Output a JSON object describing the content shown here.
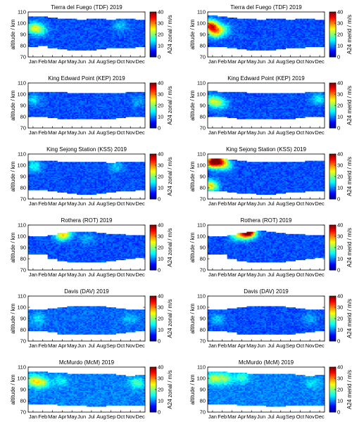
{
  "chart_data": {
    "type": "heatmap",
    "months": [
      "Jan",
      "Feb",
      "Mar",
      "Apr",
      "May",
      "Jun",
      "Jul",
      "Aug",
      "Sep",
      "Oct",
      "Nov",
      "Dec"
    ],
    "ylim": [
      70,
      110
    ],
    "yticks": [
      70,
      80,
      90,
      100,
      110
    ],
    "ylabel": "altitude / km",
    "colorbar_ticks": [
      0,
      10,
      20,
      30,
      40
    ],
    "colorbar_range": [
      0,
      40
    ],
    "colormap": [
      "#00008f",
      "#0000ff",
      "#0080ff",
      "#00ffff",
      "#80ff80",
      "#ffff00",
      "#ff8000",
      "#ff0000",
      "#800000"
    ],
    "panels": [
      {
        "title": "Tierra del Fuego (TDF) 2019",
        "component": "zonal",
        "cbar_label": "A24 zonal / m/s",
        "coverage": [
          [
            79,
            106
          ],
          [
            80,
            106
          ],
          [
            78,
            105
          ],
          [
            77,
            104
          ],
          [
            76,
            104
          ],
          [
            76,
            103
          ],
          [
            76,
            104
          ],
          [
            77,
            104
          ],
          [
            78,
            103
          ],
          [
            78,
            104
          ],
          [
            78,
            104
          ],
          [
            79,
            103
          ]
        ],
        "cores": [
          {
            "month": 0.6,
            "alt": 96,
            "value": 22
          },
          {
            "month": 1.3,
            "alt": 94,
            "value": 16
          },
          {
            "month": 9.5,
            "alt": 98,
            "value": 13
          }
        ],
        "base": 8
      },
      {
        "title": "Tierra del Fuego (TDF) 2019",
        "component": "merid",
        "cbar_label": "A24 merid / m/s",
        "coverage": [
          [
            79,
            107
          ],
          [
            79,
            106
          ],
          [
            78,
            105
          ],
          [
            77,
            104
          ],
          [
            76,
            104
          ],
          [
            76,
            103
          ],
          [
            76,
            104
          ],
          [
            77,
            104
          ],
          [
            78,
            103
          ],
          [
            78,
            104
          ],
          [
            79,
            104
          ],
          [
            79,
            103
          ]
        ],
        "cores": [
          {
            "month": 0.3,
            "alt": 98,
            "value": 34
          },
          {
            "month": 0.8,
            "alt": 92,
            "value": 24
          },
          {
            "month": 1.6,
            "alt": 95,
            "value": 17
          }
        ],
        "base": 8
      },
      {
        "title": "King Edward Point (KEP) 2019",
        "component": "zonal",
        "cbar_label": "A24 zonal / m/s",
        "coverage": [
          [
            80,
            102
          ],
          [
            80,
            102
          ],
          [
            79,
            102
          ],
          [
            78,
            102
          ],
          [
            78,
            101
          ],
          [
            78,
            101
          ],
          [
            78,
            101
          ],
          [
            78,
            101
          ],
          [
            78,
            101
          ],
          [
            79,
            101
          ],
          [
            80,
            102
          ],
          [
            80,
            102
          ]
        ],
        "cores": [
          {
            "month": 0.5,
            "alt": 95,
            "value": 14
          },
          {
            "month": 11.3,
            "alt": 94,
            "value": 12
          }
        ],
        "base": 8
      },
      {
        "title": "King Edward Point (KEP) 2019",
        "component": "merid",
        "cbar_label": "A24 merid / m/s",
        "coverage": [
          [
            80,
            103
          ],
          [
            80,
            102
          ],
          [
            79,
            102
          ],
          [
            78,
            102
          ],
          [
            78,
            101
          ],
          [
            78,
            101
          ],
          [
            78,
            101
          ],
          [
            78,
            101
          ],
          [
            78,
            101
          ],
          [
            79,
            101
          ],
          [
            80,
            102
          ],
          [
            80,
            102
          ]
        ],
        "cores": [
          {
            "month": 0.5,
            "alt": 94,
            "value": 22
          },
          {
            "month": 1.4,
            "alt": 92,
            "value": 16
          },
          {
            "month": 11.4,
            "alt": 96,
            "value": 15
          }
        ],
        "base": 8
      },
      {
        "title": "King Sejong Station (KSS) 2019",
        "component": "zonal",
        "cbar_label": "A24 zonal / m/s",
        "coverage": [
          [
            78,
            104
          ],
          [
            78,
            104
          ],
          [
            77,
            104
          ],
          [
            76,
            103
          ],
          [
            75,
            103
          ],
          [
            74,
            103
          ],
          [
            74,
            103
          ],
          [
            75,
            103
          ],
          [
            76,
            102
          ],
          [
            77,
            103
          ],
          [
            77,
            103
          ],
          [
            78,
            103
          ]
        ],
        "cores": [
          {
            "month": 0.6,
            "alt": 99,
            "value": 16
          },
          {
            "month": 9.0,
            "alt": 99,
            "value": 13
          }
        ],
        "base": 8
      },
      {
        "title": "King Sejong Station (KSS) 2019",
        "component": "merid",
        "cbar_label": "A24 merid / m/s",
        "coverage": [
          [
            77,
            106
          ],
          [
            77,
            106
          ],
          [
            76,
            105
          ],
          [
            75,
            104
          ],
          [
            75,
            103
          ],
          [
            74,
            103
          ],
          [
            74,
            103
          ],
          [
            75,
            103
          ],
          [
            76,
            103
          ],
          [
            76,
            103
          ],
          [
            77,
            104
          ],
          [
            77,
            104
          ]
        ],
        "cores": [
          {
            "month": 0.4,
            "alt": 103,
            "value": 34
          },
          {
            "month": 1.2,
            "alt": 104,
            "value": 30
          },
          {
            "month": 0.3,
            "alt": 82,
            "value": 26
          },
          {
            "month": 1.8,
            "alt": 100,
            "value": 18
          }
        ],
        "base": 8
      },
      {
        "title": "Rothera (ROT) 2019",
        "component": "zonal",
        "cbar_label": "A24 zonal / m/s",
        "coverage": [
          [
            84,
            100
          ],
          [
            84,
            100
          ],
          [
            80,
            101
          ],
          [
            78,
            103
          ],
          [
            77,
            104
          ],
          [
            77,
            104
          ],
          [
            77,
            104
          ],
          [
            77,
            103
          ],
          [
            78,
            102
          ],
          [
            79,
            102
          ],
          [
            80,
            101
          ],
          [
            81,
            101
          ]
        ],
        "cores": [
          {
            "month": 3.4,
            "alt": 101,
            "value": 18
          },
          {
            "month": 3.8,
            "alt": 103,
            "value": 20
          },
          {
            "month": 6.0,
            "alt": 98,
            "value": 12
          }
        ],
        "base": 8
      },
      {
        "title": "Rothera (ROT) 2019",
        "component": "merid",
        "cbar_label": "A24 merid / m/s",
        "coverage": [
          [
            84,
            100
          ],
          [
            84,
            100
          ],
          [
            80,
            101
          ],
          [
            78,
            103
          ],
          [
            77,
            104
          ],
          [
            77,
            105
          ],
          [
            77,
            104
          ],
          [
            77,
            103
          ],
          [
            78,
            102
          ],
          [
            79,
            102
          ],
          [
            80,
            101
          ],
          [
            81,
            101
          ]
        ],
        "cores": [
          {
            "month": 3.9,
            "alt": 103,
            "value": 26
          },
          {
            "month": 4.3,
            "alt": 104,
            "value": 30
          },
          {
            "month": 3.0,
            "alt": 101,
            "value": 18
          }
        ],
        "base": 8
      },
      {
        "title": "Davis (DAV) 2019",
        "component": "zonal",
        "cbar_label": "A24 zonal / m/s",
        "coverage": [
          [
            79,
            98
          ],
          [
            79,
            98
          ],
          [
            78,
            99
          ],
          [
            76,
            100
          ],
          [
            76,
            101
          ],
          [
            76,
            101
          ],
          [
            76,
            101
          ],
          [
            76,
            101
          ],
          [
            76,
            100
          ],
          [
            77,
            99
          ],
          [
            78,
            98
          ],
          [
            79,
            98
          ]
        ],
        "cores": [
          {
            "month": 1.0,
            "alt": 90,
            "value": 14
          },
          {
            "month": 10.5,
            "alt": 90,
            "value": 13
          }
        ],
        "base": 9
      },
      {
        "title": "Davis (DAV) 2019",
        "component": "merid",
        "cbar_label": "A24 merid / m/s",
        "coverage": [
          [
            79,
            98
          ],
          [
            79,
            98
          ],
          [
            78,
            99
          ],
          [
            76,
            100
          ],
          [
            76,
            101
          ],
          [
            76,
            101
          ],
          [
            76,
            101
          ],
          [
            76,
            101
          ],
          [
            76,
            100
          ],
          [
            77,
            99
          ],
          [
            78,
            98
          ],
          [
            79,
            98
          ]
        ],
        "cores": [
          {
            "month": 1.0,
            "alt": 90,
            "value": 13
          },
          {
            "month": 10.5,
            "alt": 90,
            "value": 12
          }
        ],
        "base": 8
      },
      {
        "title": "McMurdo (McM) 2019",
        "component": "zonal",
        "cbar_label": "A24 zonal / m/s",
        "coverage": [
          [
            77,
            106
          ],
          [
            77,
            106
          ],
          [
            77,
            105
          ],
          [
            76,
            105
          ],
          [
            76,
            104
          ],
          [
            76,
            104
          ],
          [
            75,
            104
          ],
          [
            75,
            104
          ],
          [
            76,
            104
          ],
          [
            76,
            103
          ],
          [
            76,
            102
          ],
          [
            76,
            103
          ]
        ],
        "cores": [
          {
            "month": 0.6,
            "alt": 98,
            "value": 24
          },
          {
            "month": 1.5,
            "alt": 96,
            "value": 20
          },
          {
            "month": 3.3,
            "alt": 98,
            "value": 15
          },
          {
            "month": 11.2,
            "alt": 96,
            "value": 18
          }
        ],
        "base": 10
      },
      {
        "title": "McMurdo (McM) 2019",
        "component": "merid",
        "cbar_label": "A24 merid / m/s",
        "coverage": [
          [
            77,
            106
          ],
          [
            77,
            106
          ],
          [
            77,
            105
          ],
          [
            76,
            105
          ],
          [
            76,
            104
          ],
          [
            76,
            104
          ],
          [
            75,
            104
          ],
          [
            75,
            104
          ],
          [
            76,
            104
          ],
          [
            76,
            103
          ],
          [
            76,
            102
          ],
          [
            76,
            103
          ]
        ],
        "cores": [
          {
            "month": 0.6,
            "alt": 100,
            "value": 22
          },
          {
            "month": 1.8,
            "alt": 100,
            "value": 20
          },
          {
            "month": 3.5,
            "alt": 101,
            "value": 18
          },
          {
            "month": 10.8,
            "alt": 96,
            "value": 14
          }
        ],
        "base": 10
      }
    ]
  }
}
